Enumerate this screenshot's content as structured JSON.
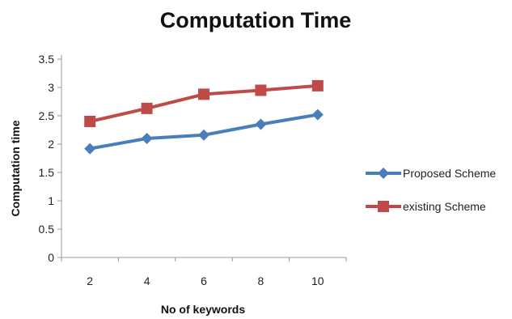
{
  "chart_data": {
    "type": "line",
    "title": "Computation Time",
    "xlabel": "No of keywords",
    "ylabel": "Computation time",
    "categories": [
      "2",
      "4",
      "6",
      "8",
      "10"
    ],
    "ylim": [
      0,
      3.5
    ],
    "yticks": [
      "0",
      "0.5",
      "1",
      "1.5",
      "2",
      "2.5",
      "3",
      "3.5"
    ],
    "grid": false,
    "legend_position": "right",
    "series": [
      {
        "name": "Proposed Scheme",
        "values": [
          1.92,
          2.1,
          2.16,
          2.35,
          2.52
        ],
        "color": "#4a7ebb",
        "marker": "diamond"
      },
      {
        "name": "existing Scheme",
        "values": [
          2.4,
          2.63,
          2.88,
          2.95,
          3.03
        ],
        "color": "#be4b48",
        "marker": "square"
      }
    ]
  }
}
